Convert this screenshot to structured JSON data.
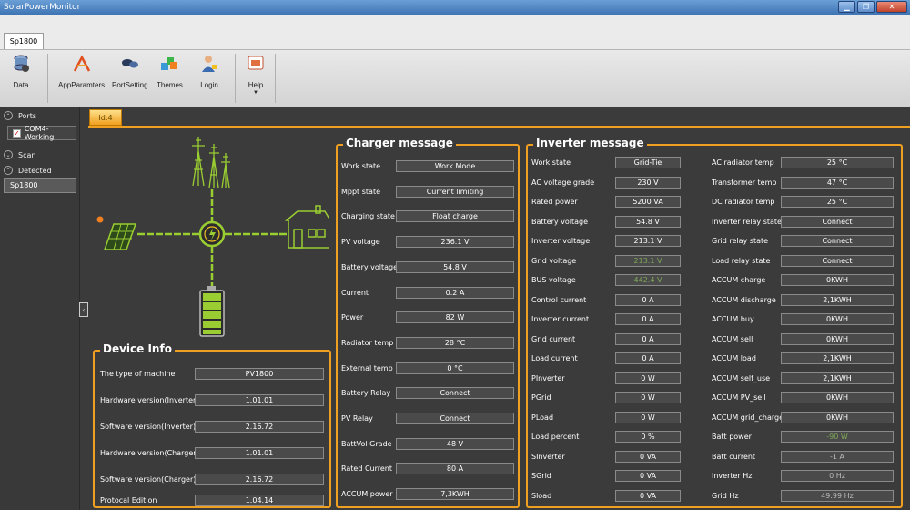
{
  "window": {
    "title": "SolarPowerMonitor"
  },
  "ribbon": {
    "tab": "Sp1800",
    "buttons": [
      {
        "label": "Data",
        "icon": "database-icon"
      },
      {
        "label": "AppParamters",
        "icon": "app-parameters-icon"
      },
      {
        "label": "PortSetting",
        "icon": "port-setting-icon"
      },
      {
        "label": "Themes",
        "icon": "themes-icon"
      },
      {
        "label": "Login",
        "icon": "login-icon"
      },
      {
        "label": "Help",
        "icon": "help-icon"
      }
    ]
  },
  "sidebar": {
    "ports_label": "Ports",
    "port_item": "COM4-Working",
    "scan_label": "Scan",
    "detected_label": "Detected",
    "detected_item": "Sp1800"
  },
  "doc_tab": "Id:4",
  "charger": {
    "title": "Charger message",
    "rows": [
      {
        "label": "Work state",
        "value": "Work Mode"
      },
      {
        "label": "Mppt state",
        "value": "Current limiting"
      },
      {
        "label": "Charging state",
        "value": "Float charge"
      },
      {
        "label": "PV voltage",
        "value": "236.1 V"
      },
      {
        "label": "Battery voltage",
        "value": "54.8 V"
      },
      {
        "label": "Current",
        "value": "0.2 A"
      },
      {
        "label": "Power",
        "value": "82 W"
      },
      {
        "label": "Radiator temp",
        "value": "28 °C"
      },
      {
        "label": "External temp",
        "value": "0 °C"
      },
      {
        "label": "Battery Relay",
        "value": "Connect"
      },
      {
        "label": "PV Relay",
        "value": "Connect"
      },
      {
        "label": "BattVol Grade",
        "value": "48 V"
      },
      {
        "label": "Rated Current",
        "value": "80 A"
      },
      {
        "label": "ACCUM power",
        "value": "7,3KWH"
      }
    ]
  },
  "inverter": {
    "title": "Inverter message",
    "left": [
      {
        "label": "Work state",
        "value": "Grid-Tie"
      },
      {
        "label": "AC voltage grade",
        "value": "230 V"
      },
      {
        "label": "Rated power",
        "value": "5200 VA"
      },
      {
        "label": "Battery voltage",
        "value": "54.8 V"
      },
      {
        "label": "Inverter voltage",
        "value": "213.1 V"
      },
      {
        "label": "Grid voltage",
        "value": "213.1 V"
      },
      {
        "label": "BUS voltage",
        "value": "442.4 V"
      },
      {
        "label": "Control current",
        "value": "0 A"
      },
      {
        "label": "Inverter current",
        "value": "0 A"
      },
      {
        "label": "Grid current",
        "value": "0 A"
      },
      {
        "label": "Load current",
        "value": "0 A"
      },
      {
        "label": "PInverter",
        "value": "0 W"
      },
      {
        "label": "PGrid",
        "value": "0 W"
      },
      {
        "label": "PLoad",
        "value": "0 W"
      },
      {
        "label": "Load percent",
        "value": "0 %"
      },
      {
        "label": "SInverter",
        "value": "0 VA"
      },
      {
        "label": "SGrid",
        "value": "0 VA"
      },
      {
        "label": "Sload",
        "value": "0 VA"
      }
    ],
    "right": [
      {
        "label": "AC radiator temp",
        "value": "25 °C"
      },
      {
        "label": "Transformer temp",
        "value": "47 °C"
      },
      {
        "label": "DC radiator temp",
        "value": "25 °C"
      },
      {
        "label": "Inverter relay state",
        "value": "Connect"
      },
      {
        "label": "Grid relay state",
        "value": "Connect"
      },
      {
        "label": "Load relay state",
        "value": "Connect"
      },
      {
        "label": "ACCUM charge",
        "value": "0KWH"
      },
      {
        "label": "ACCUM discharge",
        "value": "2,1KWH"
      },
      {
        "label": "ACCUM buy",
        "value": "0KWH"
      },
      {
        "label": "ACCUM sell",
        "value": "0KWH"
      },
      {
        "label": "ACCUM load",
        "value": "2,1KWH"
      },
      {
        "label": "ACCUM self_use",
        "value": "2,1KWH"
      },
      {
        "label": "ACCUM PV_sell",
        "value": "0KWH"
      },
      {
        "label": "ACCUM grid_charge",
        "value": "0KWH"
      },
      {
        "label": "Batt power",
        "value": "-90 W"
      },
      {
        "label": "Batt current",
        "value": "-1 A"
      },
      {
        "label": "Inverter Hz",
        "value": "0 Hz"
      },
      {
        "label": "Grid Hz",
        "value": "49.99 Hz"
      }
    ]
  },
  "device": {
    "title": "Device Info",
    "rows": [
      {
        "label": "The type of machine",
        "value": "PV1800"
      },
      {
        "label": "Hardware version(Inverter)",
        "value": "1.01.01"
      },
      {
        "label": "Software version(Inverter)",
        "value": "2.16.72"
      },
      {
        "label": "Hardware version(Charger)",
        "value": "1.01.01"
      },
      {
        "label": "Software version(Charger)",
        "value": "2.16.72"
      },
      {
        "label": "Protocal Edition",
        "value": "1.04.14"
      }
    ]
  },
  "colors": {
    "accent": "#f0a020",
    "flow": "#9acd32",
    "panel_bg": "#3b3b3b"
  }
}
